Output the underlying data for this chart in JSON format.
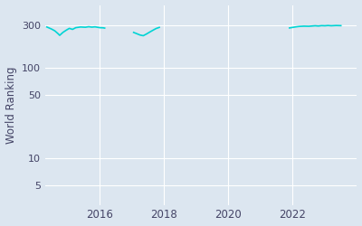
{
  "ylabel": "World Ranking",
  "line_color": "#00d4d4",
  "background_color": "#dce6f0",
  "grid_color": "#ffffff",
  "yticks": [
    5,
    10,
    50,
    100,
    300
  ],
  "ytick_labels": [
    "5",
    "10",
    "50",
    "100",
    "300"
  ],
  "xlim_start": 2014.3,
  "xlim_end": 2024.0,
  "ylim_bottom": 3,
  "ylim_top": 500,
  "xticks": [
    2016,
    2018,
    2020,
    2022
  ],
  "segments": [
    {
      "x": [
        2014.35,
        2014.5,
        2014.6,
        2014.7,
        2014.75,
        2014.85,
        2014.95,
        2015.05,
        2015.15,
        2015.25,
        2015.4,
        2015.55,
        2015.65,
        2015.75,
        2015.85,
        2015.95,
        2016.0,
        2016.1,
        2016.15
      ],
      "y": [
        285,
        270,
        258,
        240,
        230,
        248,
        262,
        275,
        268,
        280,
        285,
        283,
        287,
        284,
        286,
        282,
        280,
        279,
        277
      ]
    },
    {
      "x": [
        2017.05,
        2017.15,
        2017.25,
        2017.35,
        2017.45,
        2017.55,
        2017.65,
        2017.75,
        2017.85
      ],
      "y": [
        248,
        240,
        232,
        228,
        238,
        250,
        262,
        274,
        282
      ]
    },
    {
      "x": [
        2021.9,
        2022.0,
        2022.1,
        2022.2,
        2022.35,
        2022.5,
        2022.6,
        2022.7,
        2022.8,
        2022.9,
        2023.0,
        2023.1,
        2023.2,
        2023.35,
        2023.5
      ],
      "y": [
        278,
        282,
        286,
        289,
        291,
        290,
        292,
        294,
        292,
        295,
        294,
        296,
        294,
        296,
        295
      ]
    }
  ]
}
